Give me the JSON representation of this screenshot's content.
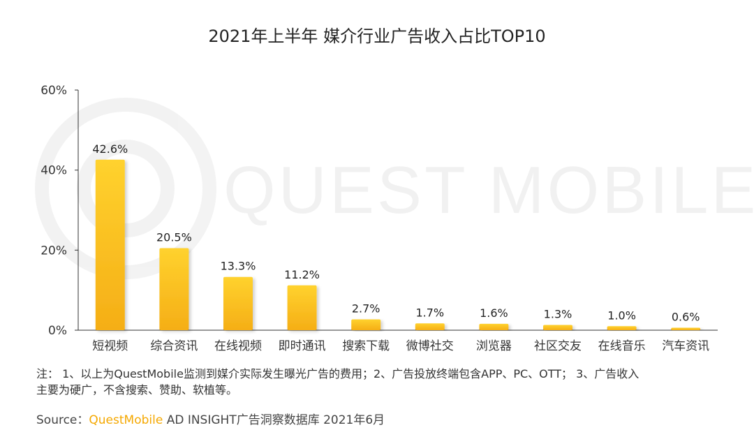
{
  "chart_data": {
    "type": "bar",
    "title": "2021年上半年 媒介行业广告收入占比TOP10",
    "categories": [
      "短视频",
      "综合资讯",
      "在线视频",
      "即时通讯",
      "搜索下载",
      "微博社交",
      "浏览器",
      "社区交友",
      "在线音乐",
      "汽车资讯"
    ],
    "values": [
      42.6,
      20.5,
      13.3,
      11.2,
      2.7,
      1.7,
      1.6,
      1.3,
      1.0,
      0.6
    ],
    "value_labels": [
      "42.6%",
      "20.5%",
      "13.3%",
      "11.2%",
      "2.7%",
      "1.7%",
      "1.6%",
      "1.3%",
      "1.0%",
      "0.6%"
    ],
    "ylim": [
      0,
      60
    ],
    "yticks": [
      0,
      20,
      40,
      60
    ],
    "ytick_labels": [
      "0%",
      "20%",
      "40%",
      "60%"
    ],
    "xlabel": "",
    "ylabel": "",
    "grid": false,
    "bar_color_top": "#ffd22e",
    "bar_color_bottom": "#f5ae16"
  },
  "watermark": "QUEST MOBILE",
  "notes": {
    "line1": "注： 1、以上为QuestMobile监测到媒介实际发生曝光广告的费用；2、广告投放终端包含APP、PC、OTT； 3、广告收入",
    "line2": "主要为硬广，不含搜索、赞助、软植等。"
  },
  "source": {
    "prefix": "Source：",
    "brand": "QuestMobile",
    "suffix": " AD INSIGHT广告洞察数据库 2021年6月"
  },
  "colors": {
    "brand": "#f5a800",
    "axis": "#333333"
  }
}
